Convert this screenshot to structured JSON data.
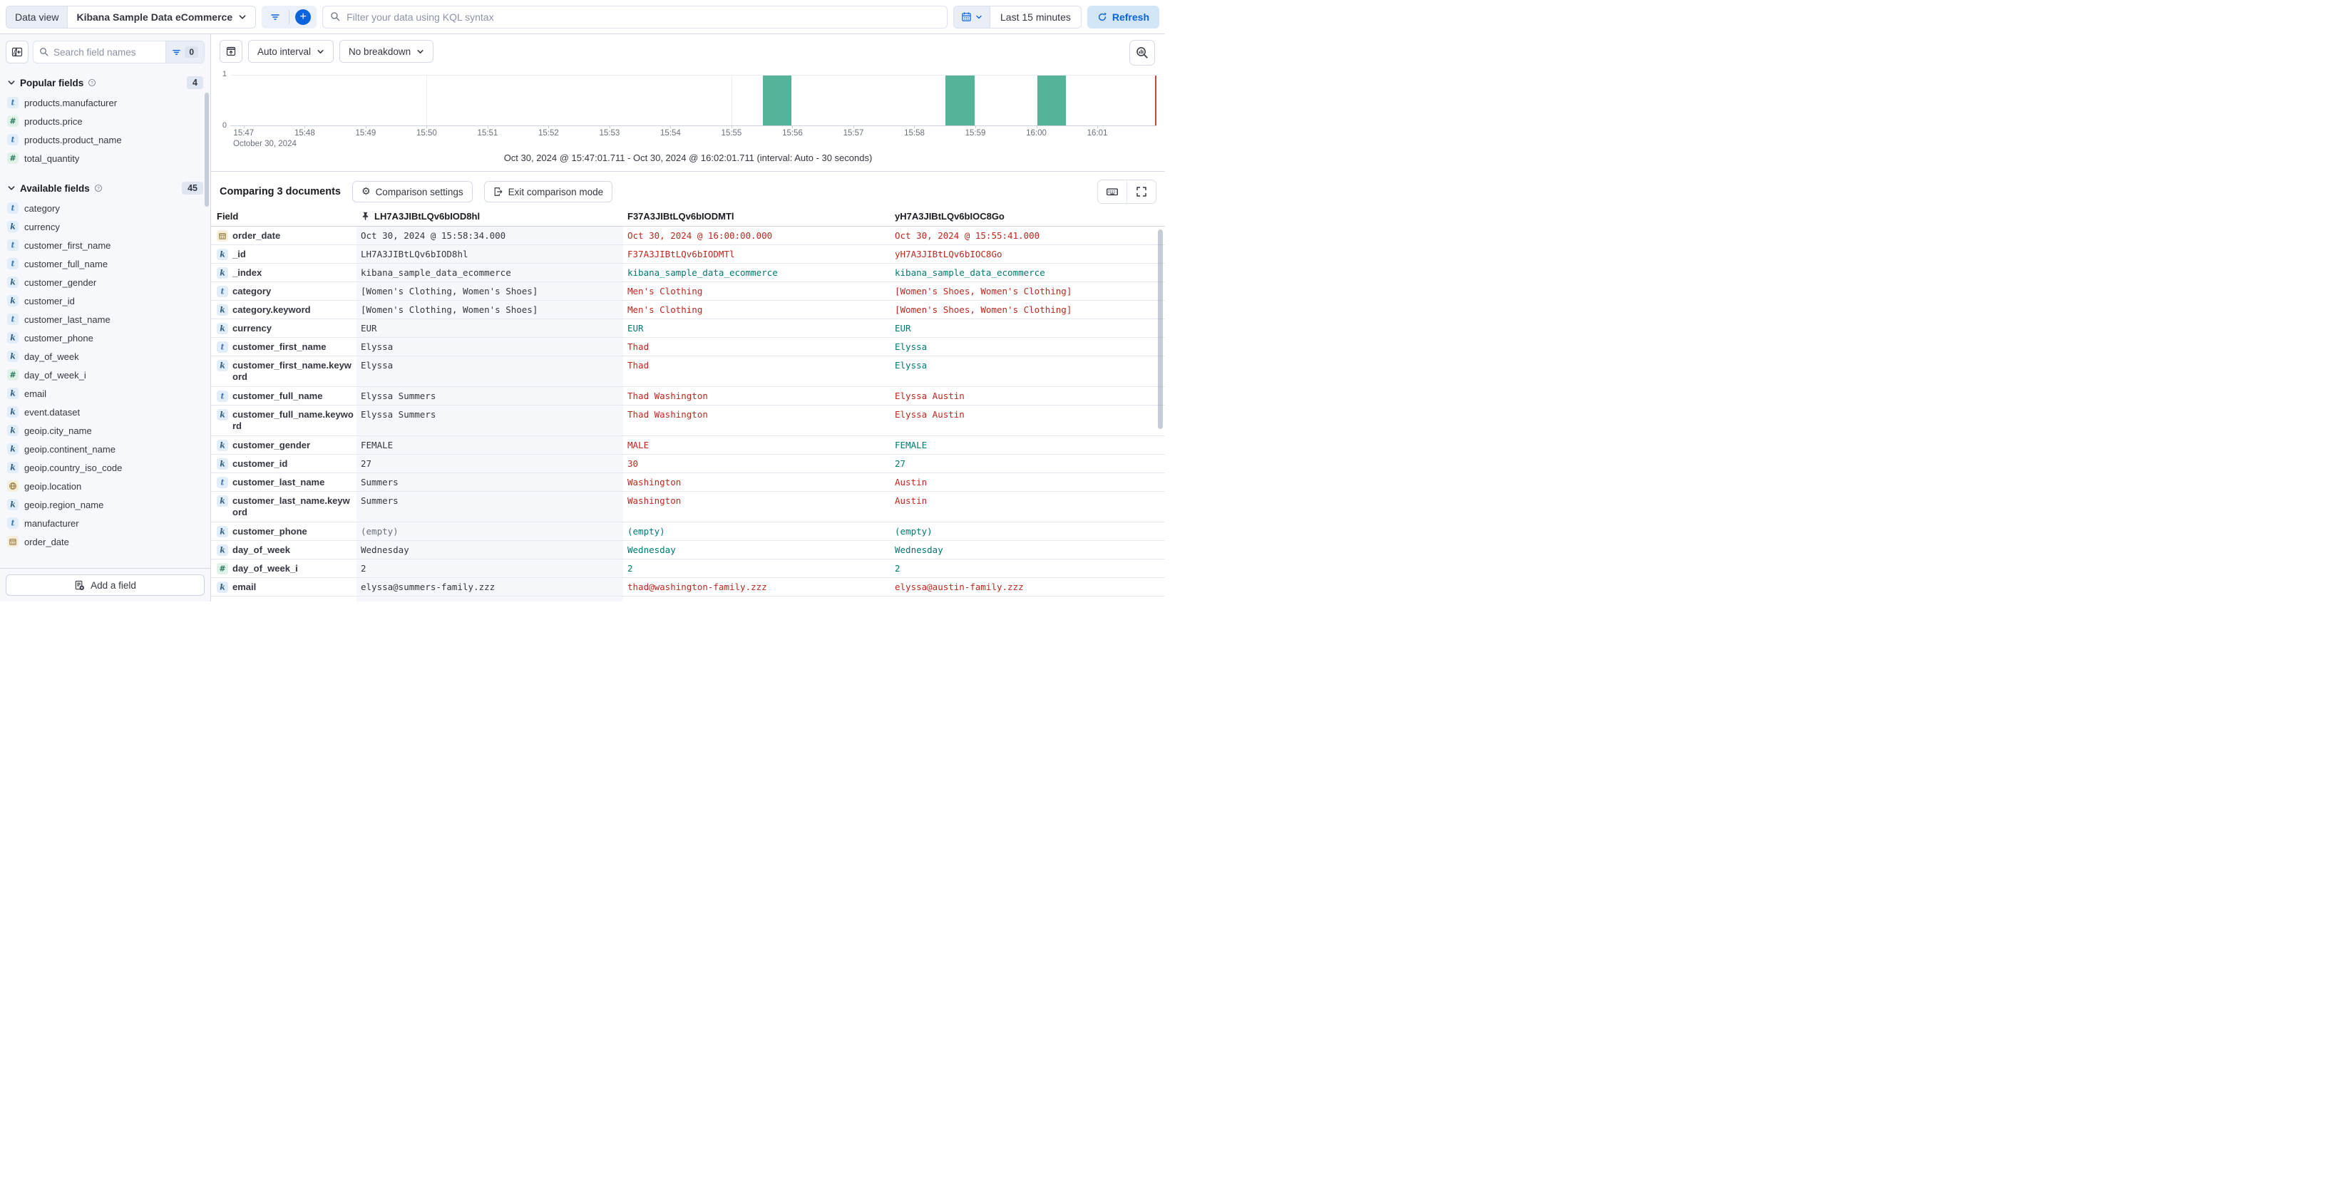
{
  "colors": {
    "primary_blue": "#0B64DD",
    "bar_green": "#54B399",
    "diff_red": "#BD271E",
    "match_teal": "#007871",
    "now_marker_red": "#C84743",
    "sidebar_bg": "#F7F8FC",
    "pinned_column_bg": "#F5F7FA"
  },
  "icons": {
    "search": "magnifier",
    "filter": "funnel-lines",
    "add_filter": "plus-circle",
    "calendar": "calendar-grid",
    "refresh": "circular-arrow",
    "collapse_sidebar": "panel-arrow-left",
    "chart_options": "box-arrow-up",
    "edit_visualization": "magnifier-chart",
    "settings": "gear",
    "exit": "door-arrow",
    "keyboard": "keyboard",
    "fullscreen": "corner-brackets",
    "pinned_doc": "pushpin",
    "help": "question-circle",
    "chevron": "chevron-down",
    "add_field": "document-plus"
  },
  "top_bar": {
    "data_view_label": "Data view",
    "data_view_value": "Kibana Sample Data eCommerce",
    "kql_placeholder": "Filter your data using KQL syntax",
    "time_range": "Last 15 minutes",
    "refresh_label": "Refresh"
  },
  "sidebar": {
    "search_placeholder": "Search field names",
    "filter_count": "0",
    "popular": {
      "title": "Popular fields",
      "count": "4",
      "fields": [
        {
          "name": "products.manufacturer",
          "type": "t",
          "glyph": "t"
        },
        {
          "name": "products.price",
          "type": "num",
          "glyph": "#"
        },
        {
          "name": "products.product_name",
          "type": "t",
          "glyph": "t"
        },
        {
          "name": "total_quantity",
          "type": "num",
          "glyph": "#"
        }
      ]
    },
    "available": {
      "title": "Available fields",
      "count": "45",
      "fields": [
        {
          "name": "category",
          "type": "t",
          "glyph": "t"
        },
        {
          "name": "currency",
          "type": "k",
          "glyph": "k"
        },
        {
          "name": "customer_first_name",
          "type": "t",
          "glyph": "t"
        },
        {
          "name": "customer_full_name",
          "type": "t",
          "glyph": "t"
        },
        {
          "name": "customer_gender",
          "type": "k",
          "glyph": "k"
        },
        {
          "name": "customer_id",
          "type": "k",
          "glyph": "k"
        },
        {
          "name": "customer_last_name",
          "type": "t",
          "glyph": "t"
        },
        {
          "name": "customer_phone",
          "type": "k",
          "glyph": "k"
        },
        {
          "name": "day_of_week",
          "type": "k",
          "glyph": "k"
        },
        {
          "name": "day_of_week_i",
          "type": "num",
          "glyph": "#"
        },
        {
          "name": "email",
          "type": "k",
          "glyph": "k"
        },
        {
          "name": "event.dataset",
          "type": "k",
          "glyph": "k"
        },
        {
          "name": "geoip.city_name",
          "type": "k",
          "glyph": "k"
        },
        {
          "name": "geoip.continent_name",
          "type": "k",
          "glyph": "k"
        },
        {
          "name": "geoip.country_iso_code",
          "type": "k",
          "glyph": "k"
        },
        {
          "name": "geoip.location",
          "type": "geo",
          "glyph": ""
        },
        {
          "name": "geoip.region_name",
          "type": "k",
          "glyph": "k"
        },
        {
          "name": "manufacturer",
          "type": "t",
          "glyph": "t"
        },
        {
          "name": "order_date",
          "type": "date",
          "glyph": ""
        }
      ]
    },
    "add_field_label": "Add a field"
  },
  "chart": {
    "interval_label": "Auto interval",
    "breakdown_label": "No breakdown",
    "caption": "Oct 30, 2024 @ 15:47:01.711 - Oct 30, 2024 @ 16:02:01.711 (interval: Auto - 30 seconds)",
    "chart_data": {
      "type": "bar",
      "title": "Document count over time",
      "x_axis_secondary_label": "October 30, 2024",
      "y_tick_top": "1",
      "y_tick_bottom": "0",
      "ylim": [
        0,
        1
      ],
      "x_domain": [
        "15:47:01.711",
        "16:02:01.711"
      ],
      "interval": "30 seconds",
      "bar_color": "#54B399",
      "x_ticks": [
        {
          "label": "15:47",
          "m": 47
        },
        {
          "label": "15:48",
          "m": 48
        },
        {
          "label": "15:49",
          "m": 49
        },
        {
          "label": "15:50",
          "m": 50
        },
        {
          "label": "15:51",
          "m": 51
        },
        {
          "label": "15:52",
          "m": 52
        },
        {
          "label": "15:53",
          "m": 53
        },
        {
          "label": "15:54",
          "m": 54
        },
        {
          "label": "15:55",
          "m": 55
        },
        {
          "label": "15:56",
          "m": 56
        },
        {
          "label": "15:57",
          "m": 57
        },
        {
          "label": "15:58",
          "m": 58
        },
        {
          "label": "15:59",
          "m": 59
        },
        {
          "label": "16:00",
          "m": 60
        },
        {
          "label": "16:01",
          "m": 61
        }
      ],
      "gridlines_m": [
        50,
        55,
        60
      ],
      "bar_width_minutes": 0.5,
      "bars": [
        {
          "time": "15:55:30",
          "m": 55.5,
          "count": 1
        },
        {
          "time": "15:58:30",
          "m": 58.5,
          "count": 1
        },
        {
          "time": "16:00:00",
          "m": 60.0,
          "count": 1
        }
      ]
    }
  },
  "comparison": {
    "title": "Comparing 3 documents",
    "settings_label": "Comparison settings",
    "exit_label": "Exit comparison mode"
  },
  "table": {
    "field_header": "Field",
    "doc_headers": [
      "LH7A3JIBtLQv6bIOD8hl",
      "F37A3JIBtLQv6bIODMTl",
      "yH7A3JIBtLQv6bIOC8Go"
    ],
    "rows": [
      {
        "field": "order_date",
        "type": "date",
        "glyph": "",
        "rowclass": "",
        "c1": "Oct 30, 2024 @ 15:58:34.000",
        "s1": "base",
        "c2": "Oct 30, 2024 @ 16:00:00.000",
        "s2": "diff",
        "c3": "Oct 30, 2024 @ 15:55:41.000",
        "s3": "diff"
      },
      {
        "field": "_id",
        "type": "k",
        "glyph": "k",
        "rowclass": "",
        "c1": "LH7A3JIBtLQv6bIOD8hl",
        "s1": "base",
        "c2": "F37A3JIBtLQv6bIODMTl",
        "s2": "diff",
        "c3": "yH7A3JIBtLQv6bIOC8Go",
        "s3": "diff"
      },
      {
        "field": "_index",
        "type": "k",
        "glyph": "k",
        "rowclass": "",
        "c1": "kibana_sample_data_ecommerce",
        "s1": "base",
        "c2": "kibana_sample_data_ecommerce",
        "s2": "same",
        "c3": "kibana_sample_data_ecommerce",
        "s3": "same"
      },
      {
        "field": "category",
        "type": "t",
        "glyph": "t",
        "rowclass": "",
        "c1": "[Women's Clothing, Women's Shoes]",
        "s1": "base",
        "c2": "Men's Clothing",
        "s2": "diff",
        "c3": "[Women's Shoes, Women's Clothing]",
        "s3": "diff"
      },
      {
        "field": "category.keyword",
        "type": "k",
        "glyph": "k",
        "rowclass": "",
        "c1": "[Women's Clothing, Women's Shoes]",
        "s1": "base",
        "c2": "Men's Clothing",
        "s2": "diff",
        "c3": "[Women's Shoes, Women's Clothing]",
        "s3": "diff"
      },
      {
        "field": "currency",
        "type": "k",
        "glyph": "k",
        "rowclass": "",
        "c1": "EUR",
        "s1": "base",
        "c2": "EUR",
        "s2": "same",
        "c3": "EUR",
        "s3": "same"
      },
      {
        "field": "customer_first_name",
        "type": "t",
        "glyph": "t",
        "rowclass": "",
        "c1": "Elyssa",
        "s1": "base",
        "c2": "Thad",
        "s2": "diff",
        "c3": "Elyssa",
        "s3": "same"
      },
      {
        "field": "customer_first_name.keyword",
        "type": "k",
        "glyph": "k",
        "rowclass": "h2",
        "c1": "Elyssa",
        "s1": "base",
        "c2": "Thad",
        "s2": "diff",
        "c3": "Elyssa",
        "s3": "same"
      },
      {
        "field": "customer_full_name",
        "type": "t",
        "glyph": "t",
        "rowclass": "",
        "c1": "Elyssa Summers",
        "s1": "base",
        "c2": "Thad Washington",
        "s2": "diff",
        "c3": "Elyssa Austin",
        "s3": "diff"
      },
      {
        "field": "customer_full_name.keyword",
        "type": "k",
        "glyph": "k",
        "rowclass": "h2",
        "c1": "Elyssa Summers",
        "s1": "base",
        "c2": "Thad Washington",
        "s2": "diff",
        "c3": "Elyssa Austin",
        "s3": "diff"
      },
      {
        "field": "customer_gender",
        "type": "k",
        "glyph": "k",
        "rowclass": "",
        "c1": "FEMALE",
        "s1": "base",
        "c2": "MALE",
        "s2": "diff",
        "c3": "FEMALE",
        "s3": "same"
      },
      {
        "field": "customer_id",
        "type": "k",
        "glyph": "k",
        "rowclass": "",
        "c1": "27",
        "s1": "base",
        "c2": "30",
        "s2": "diff",
        "c3": "27",
        "s3": "same"
      },
      {
        "field": "customer_last_name",
        "type": "t",
        "glyph": "t",
        "rowclass": "",
        "c1": "Summers",
        "s1": "base",
        "c2": "Washington",
        "s2": "diff",
        "c3": "Austin",
        "s3": "diff"
      },
      {
        "field": "customer_last_name.keyword",
        "type": "k",
        "glyph": "k",
        "rowclass": "h2",
        "c1": "Summers",
        "s1": "base",
        "c2": "Washington",
        "s2": "diff",
        "c3": "Austin",
        "s3": "diff"
      },
      {
        "field": "customer_phone",
        "type": "k",
        "glyph": "k",
        "rowclass": "",
        "c1": "(empty)",
        "s1": "base muted",
        "c2": "(empty)",
        "s2": "same",
        "c3": "(empty)",
        "s3": "same"
      },
      {
        "field": "day_of_week",
        "type": "k",
        "glyph": "k",
        "rowclass": "",
        "c1": "Wednesday",
        "s1": "base",
        "c2": "Wednesday",
        "s2": "same",
        "c3": "Wednesday",
        "s3": "same"
      },
      {
        "field": "day_of_week_i",
        "type": "num",
        "glyph": "#",
        "rowclass": "",
        "c1": "2",
        "s1": "base",
        "c2": "2",
        "s2": "same",
        "c3": "2",
        "s3": "same"
      },
      {
        "field": "email",
        "type": "k",
        "glyph": "k",
        "rowclass": "",
        "c1": "elyssa@summers-family.zzz",
        "s1": "base",
        "c2": "thad@washington-family.zzz",
        "s2": "diff",
        "c3": "elyssa@austin-family.zzz",
        "s3": "diff"
      }
    ]
  }
}
